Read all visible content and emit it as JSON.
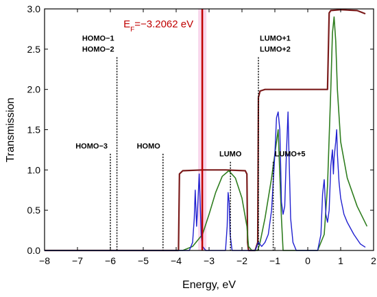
{
  "chart_data": {
    "type": "line",
    "xlabel": "Energy, eV",
    "ylabel": "Transmission",
    "xlim": [
      -8,
      2
    ],
    "ylim": [
      0,
      3.0
    ],
    "x_ticks": [
      -8,
      -7,
      -6,
      -5,
      -4,
      -3,
      -2,
      -1,
      0,
      1,
      2
    ],
    "y_ticks": [
      0.0,
      0.5,
      1.0,
      1.5,
      2.0,
      2.5,
      3.0
    ],
    "x_tick_labels": [
      "−8",
      "−7",
      "−6",
      "−5",
      "−4",
      "−3",
      "−2",
      "−1",
      "0",
      "1",
      "2"
    ],
    "y_tick_labels": [
      "0.0",
      "0.5",
      "1.0",
      "1.5",
      "2.0",
      "2.5",
      "3.0"
    ],
    "fermi_level": {
      "x": -3.2062,
      "label": "E F=−3.2062 eV",
      "label_main": "E",
      "label_sub": "F",
      "label_rest": "=−3.2062 eV",
      "color": "#c00000"
    },
    "orbital_markers": [
      {
        "x": -6.0,
        "top": 1.2,
        "lines": [
          "HOMO−3"
        ],
        "label_anchor": "end"
      },
      {
        "x": -5.8,
        "top": 2.4,
        "lines": [
          "HOMO−1",
          "HOMO−2"
        ],
        "label_anchor": "end"
      },
      {
        "x": -4.4,
        "top": 1.2,
        "lines": [
          "HOMO"
        ],
        "label_anchor": "end"
      },
      {
        "x": -2.35,
        "top": 1.1,
        "lines": [
          "LUMO"
        ],
        "label_anchor": "middle"
      },
      {
        "x": -1.5,
        "top": 2.4,
        "lines": [
          "LUMO+1",
          "LUMO+2"
        ],
        "label_anchor": "start"
      },
      {
        "x": -1.05,
        "top": 1.1,
        "lines": [
          "LUMO+5"
        ],
        "label_anchor": "start"
      }
    ],
    "series": [
      {
        "color": "#7a1a1a",
        "width": 2.2,
        "x": [
          -8,
          -3.93,
          -3.9,
          -3.8,
          -3.2,
          -2.5,
          -1.9,
          -1.85,
          -1.83,
          -1.8,
          -1.6,
          -1.52,
          -1.5,
          -1.45,
          -1.3,
          0.6,
          0.65,
          0.7,
          1.0,
          1.5,
          1.75
        ],
        "y": [
          0,
          0,
          0.95,
          0.99,
          1.0,
          1.0,
          0.99,
          0.95,
          0.1,
          0,
          0,
          0.1,
          1.9,
          1.98,
          2.0,
          2.0,
          2.95,
          2.98,
          2.99,
          2.98,
          2.94
        ]
      },
      {
        "color": "#2e7d1e",
        "width": 1.6,
        "x": [
          -8,
          -3.8,
          -3.5,
          -3.2,
          -3.0,
          -2.8,
          -2.6,
          -2.4,
          -2.2,
          -2.0,
          -1.85,
          -1.8,
          -1.7,
          -1.52,
          -1.45,
          -1.3,
          -1.1,
          -0.9,
          -0.8,
          -0.75,
          -0.5,
          0.3,
          0.5,
          0.6,
          0.7,
          0.75,
          0.8,
          0.85,
          0.9,
          1.0,
          1.2,
          1.5,
          1.8
        ],
        "y": [
          0,
          0,
          0.05,
          0.2,
          0.45,
          0.72,
          0.92,
          0.99,
          0.9,
          0.65,
          0.3,
          0.05,
          0,
          0,
          0.1,
          0.4,
          0.9,
          1.5,
          0.4,
          0,
          0,
          0,
          0.2,
          0.8,
          2.0,
          2.7,
          2.9,
          2.6,
          2.0,
          1.35,
          0.9,
          0.55,
          0.3
        ]
      },
      {
        "color": "#1f1fd0",
        "width": 1.4,
        "x": [
          -8,
          -3.6,
          -3.5,
          -3.45,
          -3.42,
          -3.38,
          -3.35,
          -3.3,
          -3.27,
          -3.24,
          -3.2,
          -3.1,
          -2.5,
          -2.45,
          -2.42,
          -2.39,
          -2.36,
          -2.3,
          -1.6,
          -1.55,
          -1.5,
          -1.4,
          -1.3,
          -1.2,
          -1.1,
          -1.0,
          -0.95,
          -0.9,
          -0.85,
          -0.82,
          -0.8,
          -0.75,
          -0.7,
          -0.65,
          -0.62,
          -0.6,
          -0.57,
          -0.52,
          -0.45,
          -0.35,
          0.3,
          0.4,
          0.45,
          0.5,
          0.55,
          0.6,
          0.65,
          0.7,
          0.75,
          0.78,
          0.8,
          0.85,
          0.88,
          0.9,
          0.95,
          1.0,
          1.1,
          1.2,
          1.4,
          1.6,
          1.75
        ],
        "y": [
          0,
          0,
          0.1,
          0.4,
          0.75,
          0.3,
          0.5,
          0.95,
          0.6,
          0.2,
          0.05,
          0,
          0,
          0.3,
          0.72,
          0.6,
          0.2,
          0,
          0,
          0.05,
          0.1,
          0.05,
          0.1,
          0.2,
          0.5,
          1.2,
          1.65,
          1.72,
          1.5,
          1.0,
          0.6,
          0.45,
          0.55,
          1.2,
          1.5,
          1.72,
          1.2,
          0.4,
          0.1,
          0,
          0,
          0.2,
          0.7,
          0.88,
          0.45,
          0.35,
          0.5,
          1.05,
          1.25,
          0.95,
          1.15,
          1.35,
          1.5,
          1.2,
          0.85,
          0.65,
          0.45,
          0.35,
          0.2,
          0.08,
          0.04
        ]
      }
    ]
  }
}
